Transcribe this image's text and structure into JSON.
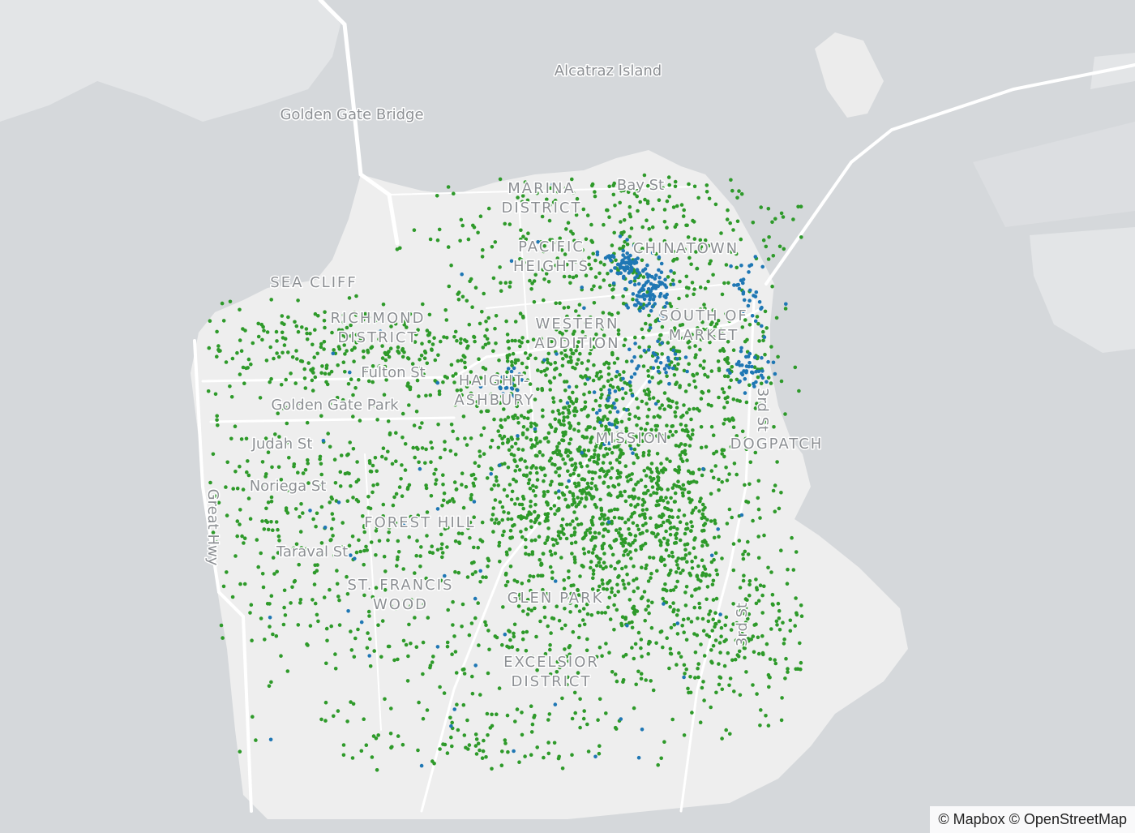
{
  "map": {
    "labels": [
      {
        "lines": [
          "Alcatraz Island"
        ]
      },
      {
        "lines": [
          "Golden Gate Bridge"
        ]
      },
      {
        "lines": [
          "SEA CLIFF"
        ]
      },
      {
        "lines": [
          "RICHMOND",
          "DISTRICT"
        ]
      },
      {
        "lines": [
          "Fulton St"
        ]
      },
      {
        "lines": [
          "Golden Gate Park"
        ]
      },
      {
        "lines": [
          "Judah St"
        ]
      },
      {
        "lines": [
          "Noriega St"
        ]
      },
      {
        "lines": [
          "Taraval St"
        ]
      },
      {
        "lines": [
          "Great Hwy"
        ]
      },
      {
        "lines": [
          "FOREST HILL"
        ]
      },
      {
        "lines": [
          "ST. FRANCIS",
          "WOOD"
        ]
      },
      {
        "lines": [
          "MARINA",
          "DISTRICT"
        ]
      },
      {
        "lines": [
          "Bay St"
        ]
      },
      {
        "lines": [
          "PACIFIC",
          "HEIGHTS"
        ]
      },
      {
        "lines": [
          "CHINATOWN"
        ]
      },
      {
        "lines": [
          "WESTERN",
          "ADDITION"
        ]
      },
      {
        "lines": [
          "SOUTH OF",
          "MARKET"
        ]
      },
      {
        "lines": [
          "HAIGHT-",
          "ASHBURY"
        ]
      },
      {
        "lines": [
          "3rd St"
        ]
      },
      {
        "lines": [
          "3rd St"
        ]
      },
      {
        "lines": [
          "DOGPATCH"
        ]
      },
      {
        "lines": [
          "MISSION"
        ]
      },
      {
        "lines": [
          "GLEN PARK"
        ]
      },
      {
        "lines": [
          "EXCELSIOR",
          "DISTRICT"
        ]
      }
    ],
    "attribution": "© Mapbox © OpenStreetMap"
  }
}
